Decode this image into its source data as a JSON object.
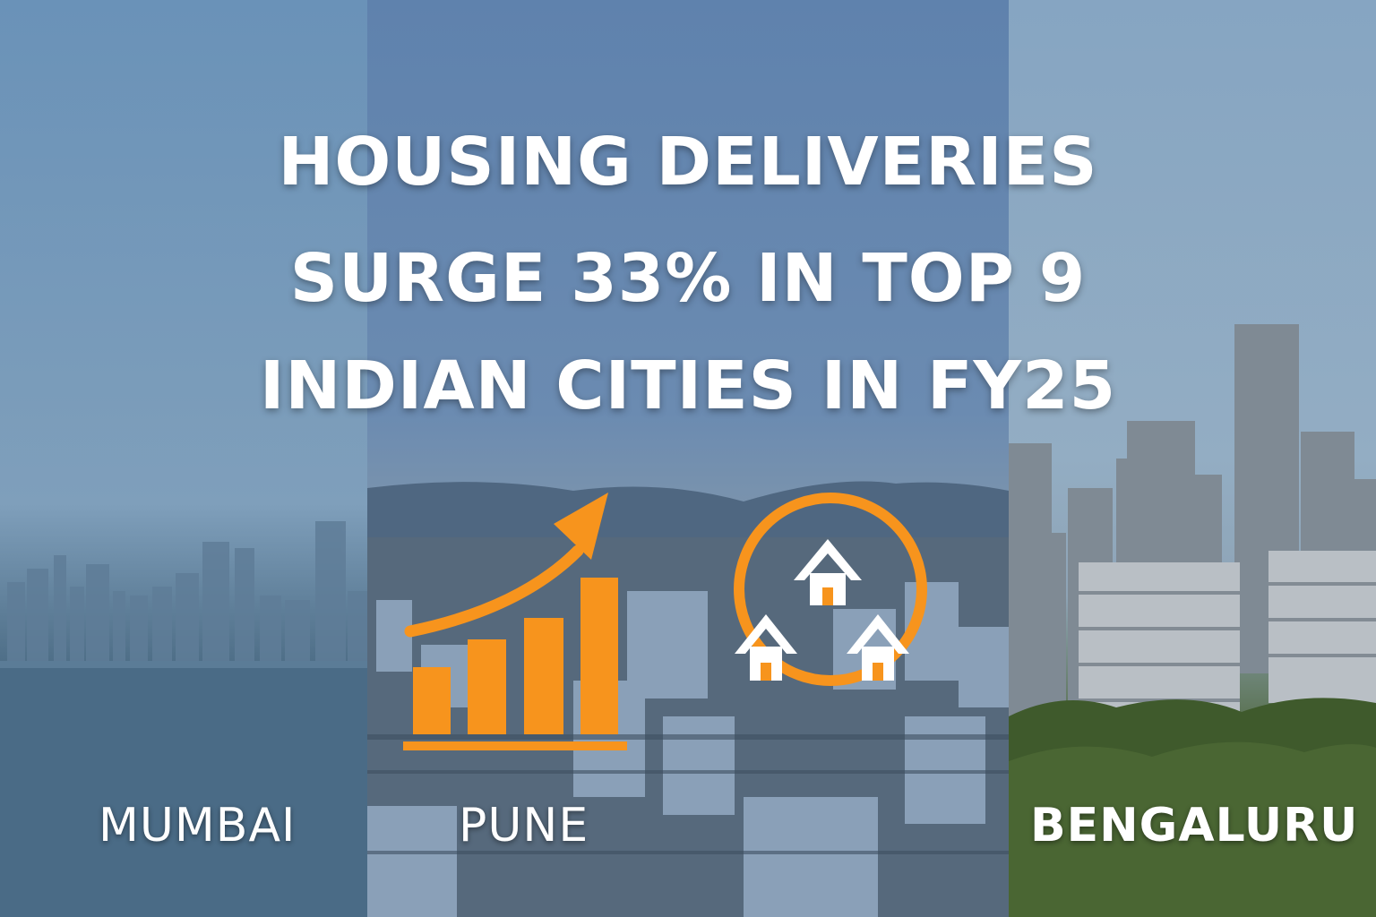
{
  "headline": {
    "line1": "HOUSING DELIVERIES",
    "line2": "SURGE 33% IN TOP 9",
    "line3": "INDIAN CITIES IN FY25"
  },
  "cities": {
    "mumbai": "MUMBAI",
    "pune": "PUNE",
    "bengaluru": "BENGALURU"
  },
  "colors": {
    "accent": "#f7941d",
    "text": "#ffffff"
  },
  "icons": [
    "bar-chart-growth-icon",
    "houses-circle-icon"
  ]
}
